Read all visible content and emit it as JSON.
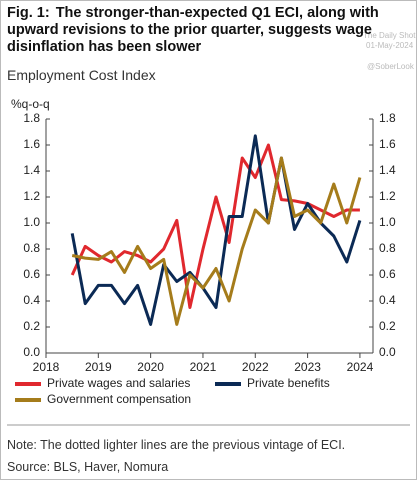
{
  "chart_data": {
    "type": "line",
    "fig_label": "Fig. 1:",
    "title": "The stronger-than-expected Q1 ECI, along with upward revisions to the prior quarter, suggests wage disinflation has been slower",
    "subtitle": "Employment Cost Index",
    "y_label": "%q-o-q",
    "watermark": [
      "The Daily Shot",
      "01-May-2024",
      "@SoberLook"
    ],
    "x": [
      2018.5,
      2018.75,
      2019.0,
      2019.25,
      2019.5,
      2019.75,
      2020.0,
      2020.25,
      2020.5,
      2020.75,
      2021.0,
      2021.25,
      2021.5,
      2021.75,
      2022.0,
      2022.25,
      2022.5,
      2022.75,
      2023.0,
      2023.25,
      2023.5,
      2023.75,
      2024.0
    ],
    "series": [
      {
        "name": "Private wages and salaries",
        "color": "#e0282e",
        "values": [
          0.6,
          0.82,
          0.75,
          0.7,
          0.78,
          0.75,
          0.7,
          0.8,
          1.02,
          0.35,
          0.8,
          1.2,
          0.85,
          1.5,
          1.35,
          1.6,
          1.18,
          1.17,
          1.15,
          1.1,
          1.05,
          1.1,
          1.1
        ]
      },
      {
        "name": "Private benefits",
        "color": "#0b2a55",
        "values": [
          0.92,
          0.38,
          0.52,
          0.52,
          0.38,
          0.52,
          0.22,
          0.68,
          0.55,
          0.62,
          0.5,
          0.35,
          1.05,
          1.05,
          1.67,
          1.0,
          1.5,
          0.95,
          1.15,
          1.0,
          0.9,
          0.7,
          1.02
        ]
      },
      {
        "name": "Government compensation",
        "color": "#a57c1b",
        "values": [
          0.75,
          0.73,
          0.72,
          0.78,
          0.62,
          0.82,
          0.65,
          0.72,
          0.22,
          0.6,
          0.5,
          0.65,
          0.4,
          0.8,
          1.1,
          1.0,
          1.5,
          1.05,
          1.1,
          1.0,
          1.3,
          1.0,
          1.35
        ]
      }
    ],
    "xlim": [
      2018,
      2024.25
    ],
    "xticks": [
      2018,
      2019,
      2020,
      2021,
      2022,
      2023,
      2024
    ],
    "ylim": [
      0,
      1.8
    ],
    "yticks": [
      {
        "value": 0,
        "label": "0.0"
      },
      {
        "value": 0.2,
        "label": "0.2"
      },
      {
        "value": 0.4,
        "label": "0.4"
      },
      {
        "value": 0.6,
        "label": "0.6"
      },
      {
        "value": 0.8,
        "label": "0.8"
      },
      {
        "value": 1.0,
        "label": "1.0"
      },
      {
        "value": 1.2,
        "label": "1.2"
      },
      {
        "value": 1.4,
        "label": "1.4"
      },
      {
        "value": 1.6,
        "label": "1.6"
      },
      {
        "value": 1.8,
        "label": "1.8"
      }
    ],
    "y2lim": [
      0,
      1.8
    ],
    "y2ticks": [
      {
        "value": 0,
        "label": "0.0"
      },
      {
        "value": 0.2,
        "label": "0.2"
      },
      {
        "value": 0.4,
        "label": "0.4"
      },
      {
        "value": 0.6,
        "label": "0.6"
      },
      {
        "value": 0.8,
        "label": "0.8"
      },
      {
        "value": 1.0,
        "label": "1.0"
      },
      {
        "value": 1.2,
        "label": "1.2"
      },
      {
        "value": 1.4,
        "label": "1.4"
      },
      {
        "value": 1.6,
        "label": "1.6"
      },
      {
        "value": 1.8,
        "label": "1.8"
      }
    ],
    "grid": false,
    "legend": "bottom",
    "note": "Note: The dotted lighter lines are the previous vintage of ECI.",
    "source": "Source: BLS, Haver, Nomura"
  }
}
